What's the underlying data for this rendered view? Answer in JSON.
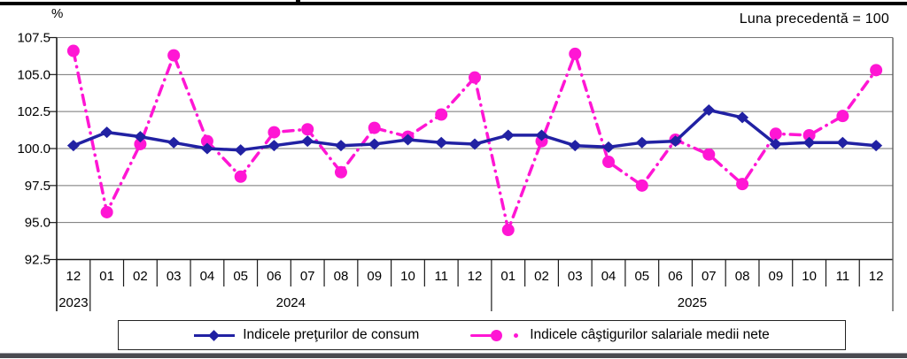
{
  "chart_data": {
    "type": "line",
    "ylabel": "%",
    "note": "Luna precedentă = 100",
    "ylim": [
      92.5,
      107.5
    ],
    "y_ticks": [
      107.5,
      105.0,
      102.5,
      100.0,
      97.5,
      95.0,
      92.5
    ],
    "grid": true,
    "legend_position": "bottom",
    "tick_labels": [
      "12",
      "01",
      "02",
      "03",
      "04",
      "05",
      "06",
      "07",
      "08",
      "09",
      "10",
      "11",
      "12",
      "01",
      "02",
      "03",
      "04",
      "05",
      "06",
      "07",
      "08",
      "09",
      "10",
      "11",
      "12"
    ],
    "year_groups": [
      {
        "label": "2023",
        "months": 1
      },
      {
        "label": "2024",
        "months": 12
      },
      {
        "label": "2025",
        "months": 12
      }
    ],
    "series": [
      {
        "name": "Indicele preţurilor de consum",
        "color": "#2121A3",
        "marker": "diamond",
        "line_style": "solid",
        "values": [
          100.2,
          101.1,
          100.8,
          100.4,
          100.0,
          99.9,
          100.2,
          100.5,
          100.2,
          100.3,
          100.6,
          100.4,
          100.3,
          100.9,
          100.9,
          100.2,
          100.1,
          100.4,
          100.5,
          102.6,
          102.1,
          100.3,
          100.4,
          100.4,
          100.2
        ]
      },
      {
        "name": "Indicele câştigurilor salariale medii nete",
        "color": "#FF16D4",
        "marker": "circle",
        "line_style": "dash-dot",
        "values": [
          106.6,
          95.7,
          100.3,
          106.3,
          100.5,
          98.1,
          101.1,
          101.3,
          98.4,
          101.4,
          100.8,
          102.3,
          104.8,
          94.5,
          100.5,
          106.4,
          99.1,
          97.5,
          100.6,
          99.6,
          97.6,
          101.0,
          100.9,
          102.2,
          105.3
        ]
      }
    ]
  }
}
